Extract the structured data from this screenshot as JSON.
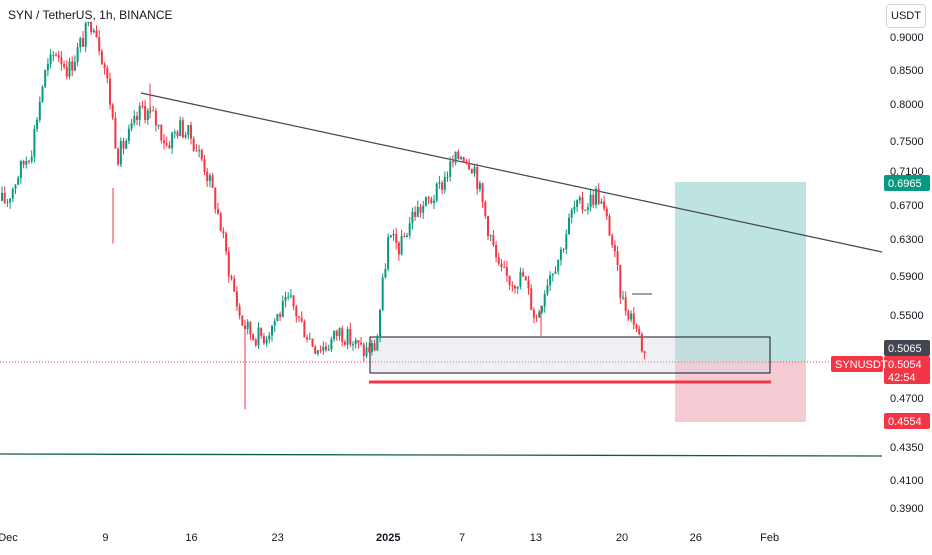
{
  "symbol_title": "SYN / TetherUS, 1h, BINANCE",
  "currency_button": "USDT",
  "chart_data": {
    "type": "candlestick",
    "y_axis": {
      "ticks": [
        0.9,
        0.85,
        0.8,
        0.75,
        0.71,
        0.67,
        0.63,
        0.59,
        0.55,
        0.47,
        0.435,
        0.41,
        0.39
      ],
      "tick_labels": [
        "0.9000",
        "0.8500",
        "0.8000",
        "0.7500",
        "0.7100",
        "0.6700",
        "0.6300",
        "0.5900",
        "0.5500",
        "0.4700",
        "0.4350",
        "0.4100",
        "0.3900"
      ]
    },
    "x_axis": {
      "labels": [
        "Dec",
        "9",
        "16",
        "23",
        "2025",
        "7",
        "13",
        "20",
        "26",
        "Feb"
      ]
    },
    "last_price": {
      "label": "SYNUSDT",
      "value": "0.5054",
      "countdown": "42:54",
      "color": "#f23645"
    },
    "price_tags": [
      {
        "value": "0.6965",
        "color": "#089981"
      },
      {
        "value": "0.5065",
        "color": "#434651"
      },
      {
        "value": "0.4554",
        "color": "#f23645"
      }
    ],
    "position": {
      "entry": 0.5065,
      "target": 0.6965,
      "stop": 0.4554,
      "profit_color": "#b2dfdb",
      "loss_color": "#f8bbd0"
    },
    "trendline": {
      "from": {
        "date": "Dec 11",
        "price": 0.816
      },
      "to": {
        "date": "Feb 5",
        "price": 0.618
      }
    },
    "support_zone": {
      "high": 0.5218,
      "low": 0.4979
    },
    "support_line": {
      "price": 0.493,
      "color": "#f23645"
    },
    "horizontal_line": {
      "price": 0.435,
      "color": "#089981"
    },
    "path_keypoints": [
      {
        "date": "Dec 1",
        "price": 0.675
      },
      {
        "date": "Dec 2",
        "price": 0.71
      },
      {
        "date": "Dec 3",
        "price": 0.74
      },
      {
        "date": "Dec 4",
        "price": 0.84
      },
      {
        "date": "Dec 5",
        "price": 0.88
      },
      {
        "date": "Dec 6",
        "price": 0.85
      },
      {
        "date": "Dec 7",
        "price": 0.89
      },
      {
        "date": "Dec 8",
        "price": 0.93
      },
      {
        "date": "Dec 9",
        "price": 0.85
      },
      {
        "date": "Dec 10",
        "price": 0.73
      },
      {
        "date": "Dec 11",
        "price": 0.76
      },
      {
        "date": "Dec 12",
        "price": 0.795
      },
      {
        "date": "Dec 13",
        "price": 0.78
      },
      {
        "date": "Dec 14",
        "price": 0.745
      },
      {
        "date": "Dec 15",
        "price": 0.77
      },
      {
        "date": "Dec 16",
        "price": 0.755
      },
      {
        "date": "Dec 17",
        "price": 0.72
      },
      {
        "date": "Dec 18",
        "price": 0.67
      },
      {
        "date": "Dec 19",
        "price": 0.6
      },
      {
        "date": "Dec 20",
        "price": 0.545
      },
      {
        "date": "Dec 21",
        "price": 0.53
      },
      {
        "date": "Dec 22",
        "price": 0.53
      },
      {
        "date": "Dec 23",
        "price": 0.55
      },
      {
        "date": "Dec 24",
        "price": 0.565
      },
      {
        "date": "Dec 25",
        "price": 0.54
      },
      {
        "date": "Dec 26",
        "price": 0.52
      },
      {
        "date": "Dec 27",
        "price": 0.52
      },
      {
        "date": "Dec 28",
        "price": 0.535
      },
      {
        "date": "Dec 29",
        "price": 0.525
      },
      {
        "date": "Dec 30",
        "price": 0.515
      },
      {
        "date": "Dec 31",
        "price": 0.52
      },
      {
        "date": "Jan 1",
        "price": 0.63
      },
      {
        "date": "Jan 2",
        "price": 0.62
      },
      {
        "date": "Jan 3",
        "price": 0.66
      },
      {
        "date": "Jan 4",
        "price": 0.67
      },
      {
        "date": "Jan 5",
        "price": 0.685
      },
      {
        "date": "Jan 6",
        "price": 0.715
      },
      {
        "date": "Jan 7",
        "price": 0.735
      },
      {
        "date": "Jan 8",
        "price": 0.715
      },
      {
        "date": "Jan 9",
        "price": 0.65
      },
      {
        "date": "Jan 10",
        "price": 0.595
      },
      {
        "date": "Jan 11",
        "price": 0.585
      },
      {
        "date": "Jan 12",
        "price": 0.59
      },
      {
        "date": "Jan 13",
        "price": 0.545
      },
      {
        "date": "Jan 14",
        "price": 0.59
      },
      {
        "date": "Jan 15",
        "price": 0.615
      },
      {
        "date": "Jan 16",
        "price": 0.665
      },
      {
        "date": "Jan 17",
        "price": 0.67
      },
      {
        "date": "Jan 18",
        "price": 0.685
      },
      {
        "date": "Jan 19",
        "price": 0.64
      },
      {
        "date": "Jan 20",
        "price": 0.565
      },
      {
        "date": "Jan 21",
        "price": 0.545
      },
      {
        "date": "Jan 22",
        "price": 0.5054
      }
    ]
  }
}
